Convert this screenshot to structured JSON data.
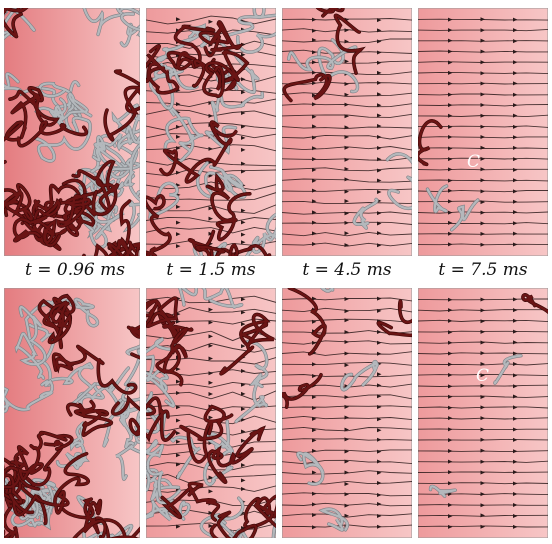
{
  "time_labels": [
    "t = 0.96 ms",
    "t = 1.5 ms",
    "t = 4.5 ms",
    "t = 7.5 ms"
  ],
  "curve_label": "C",
  "panels": [
    {
      "row": "top",
      "time": "t = 0.96 ms",
      "magnetic_field_lines": false
    },
    {
      "row": "top",
      "time": "t = 1.5 ms",
      "magnetic_field_lines": true
    },
    {
      "row": "top",
      "time": "t = 4.5 ms",
      "magnetic_field_lines": true
    },
    {
      "row": "top",
      "time": "t = 7.5 ms",
      "magnetic_field_lines": true
    },
    {
      "row": "bottom",
      "time": "t = 0.96 ms",
      "magnetic_field_lines": false
    },
    {
      "row": "bottom",
      "time": "t = 1.5 ms",
      "magnetic_field_lines": true
    },
    {
      "row": "bottom",
      "time": "t = 4.5 ms",
      "magnetic_field_lines": true
    },
    {
      "row": "bottom",
      "time": "t = 7.5 ms",
      "magnetic_field_lines": true
    }
  ],
  "colors": {
    "box_fill": "#ee9a9c",
    "box_fill_light": "#f7c6c6",
    "vortex_red": "#6a1414",
    "vortex_grey": "#b4b8bc",
    "field_line": "#2a1a1a"
  }
}
